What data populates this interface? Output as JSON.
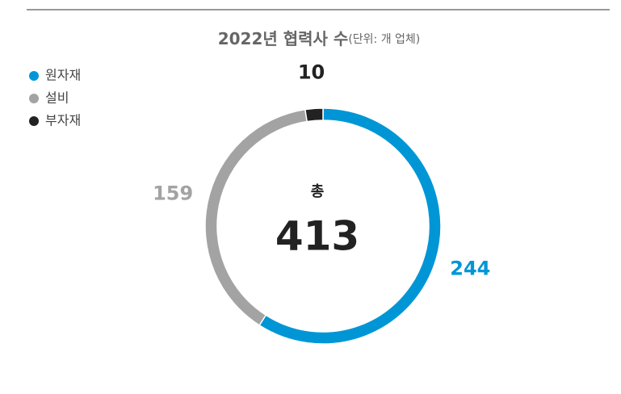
{
  "chart_data": {
    "type": "donut",
    "title": "2022년 협력사 수",
    "subtitle": "(단위: 개 업체)",
    "categories": [
      "원자재",
      "설비",
      "부자재"
    ],
    "values": [
      244,
      159,
      10
    ],
    "colors": [
      "#0096d6",
      "#a3a3a3",
      "#222222"
    ],
    "center_label": "총",
    "total": 413
  }
}
